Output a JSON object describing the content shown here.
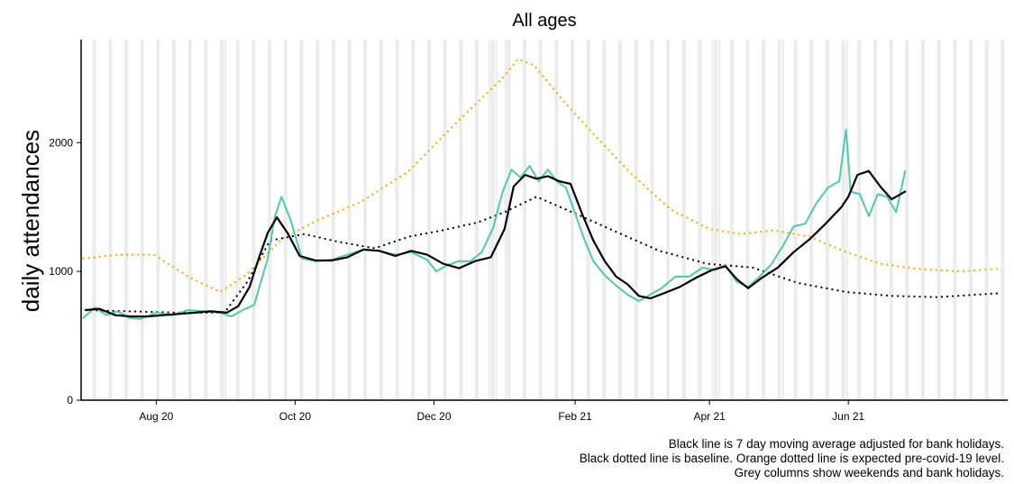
{
  "chart_data": {
    "type": "line",
    "title": "All ages",
    "xlabel": "",
    "ylabel": "daily attendances",
    "ylim": [
      0,
      2800
    ],
    "xlim": [
      "2020-06-29",
      "2021-08-10"
    ],
    "y_ticks": [
      0,
      1000,
      2000
    ],
    "x_ticks": [
      {
        "date": "2020-08-01",
        "label": "Aug 20"
      },
      {
        "date": "2020-10-01",
        "label": "Oct 20"
      },
      {
        "date": "2020-12-01",
        "label": "Dec 20"
      },
      {
        "date": "2021-02-01",
        "label": "Feb 21"
      },
      {
        "date": "2021-04-01",
        "label": "Apr 21"
      },
      {
        "date": "2021-06-01",
        "label": "Jun 21"
      }
    ],
    "grid": false,
    "weekend_start": "2020-06-27",
    "bank_holidays": [
      "2020-08-31",
      "2020-12-25",
      "2020-12-28",
      "2021-01-01",
      "2021-04-02",
      "2021-04-05",
      "2021-05-03",
      "2021-05-31"
    ],
    "colors": {
      "daily": "#4ec9b0",
      "moving_average": "#000000",
      "baseline": "#000000",
      "expected": "#ffa500",
      "weekend_columns": "#ebebeb"
    },
    "series": [
      {
        "key": "daily",
        "style": "solid",
        "x": [
          "2020-06-30",
          "2020-07-05",
          "2020-07-10",
          "2020-07-15",
          "2020-07-20",
          "2020-07-25",
          "2020-08-01",
          "2020-08-08",
          "2020-08-15",
          "2020-08-22",
          "2020-08-29",
          "2020-09-03",
          "2020-09-08",
          "2020-09-13",
          "2020-09-16",
          "2020-09-19",
          "2020-09-22",
          "2020-09-25",
          "2020-09-29",
          "2020-10-04",
          "2020-10-10",
          "2020-10-17",
          "2020-10-24",
          "2020-10-31",
          "2020-11-07",
          "2020-11-14",
          "2020-11-21",
          "2020-11-28",
          "2020-12-02",
          "2020-12-07",
          "2020-12-12",
          "2020-12-17",
          "2020-12-22",
          "2020-12-27",
          "2020-12-31",
          "2021-01-04",
          "2021-01-08",
          "2021-01-12",
          "2021-01-16",
          "2021-01-20",
          "2021-01-24",
          "2021-01-28",
          "2021-02-01",
          "2021-02-05",
          "2021-02-09",
          "2021-02-14",
          "2021-02-19",
          "2021-02-24",
          "2021-03-01",
          "2021-03-06",
          "2021-03-11",
          "2021-03-17",
          "2021-03-23",
          "2021-03-29",
          "2021-04-03",
          "2021-04-08",
          "2021-04-13",
          "2021-04-18",
          "2021-04-23",
          "2021-04-28",
          "2021-05-03",
          "2021-05-08",
          "2021-05-13",
          "2021-05-18",
          "2021-05-23",
          "2021-05-28",
          "2021-05-31",
          "2021-06-02",
          "2021-06-06",
          "2021-06-10",
          "2021-06-14",
          "2021-06-18",
          "2021-06-22",
          "2021-06-26"
        ],
        "values": [
          640,
          720,
          660,
          690,
          640,
          630,
          680,
          660,
          700,
          690,
          680,
          650,
          700,
          740,
          920,
          1100,
          1420,
          1580,
          1400,
          1100,
          1080,
          1090,
          1130,
          1170,
          1160,
          1130,
          1150,
          1090,
          1000,
          1050,
          1080,
          1080,
          1150,
          1340,
          1610,
          1790,
          1730,
          1820,
          1700,
          1790,
          1700,
          1650,
          1450,
          1250,
          1080,
          970,
          890,
          820,
          770,
          820,
          870,
          960,
          960,
          1030,
          1010,
          1050,
          920,
          880,
          960,
          1050,
          1190,
          1350,
          1370,
          1530,
          1650,
          1700,
          2100,
          1620,
          1600,
          1430,
          1600,
          1580,
          1460,
          1780
        ]
      },
      {
        "key": "moving_average",
        "style": "solid",
        "x": [
          "2020-07-01",
          "2020-07-07",
          "2020-07-14",
          "2020-07-21",
          "2020-07-28",
          "2020-08-04",
          "2020-08-11",
          "2020-08-18",
          "2020-08-25",
          "2020-09-01",
          "2020-09-06",
          "2020-09-11",
          "2020-09-15",
          "2020-09-19",
          "2020-09-23",
          "2020-09-28",
          "2020-10-03",
          "2020-10-10",
          "2020-10-17",
          "2020-10-24",
          "2020-10-31",
          "2020-11-07",
          "2020-11-14",
          "2020-11-21",
          "2020-11-28",
          "2020-12-05",
          "2020-12-12",
          "2020-12-19",
          "2020-12-26",
          "2021-01-01",
          "2021-01-05",
          "2021-01-10",
          "2021-01-15",
          "2021-01-20",
          "2021-01-25",
          "2021-01-30",
          "2021-02-04",
          "2021-02-09",
          "2021-02-14",
          "2021-02-19",
          "2021-02-24",
          "2021-03-01",
          "2021-03-06",
          "2021-03-12",
          "2021-03-19",
          "2021-03-26",
          "2021-04-02",
          "2021-04-08",
          "2021-04-13",
          "2021-04-18",
          "2021-04-24",
          "2021-05-01",
          "2021-05-08",
          "2021-05-15",
          "2021-05-22",
          "2021-05-29",
          "2021-06-01",
          "2021-06-05",
          "2021-06-10",
          "2021-06-15",
          "2021-06-20",
          "2021-06-26"
        ],
        "values": [
          700,
          710,
          660,
          650,
          650,
          660,
          670,
          680,
          690,
          680,
          730,
          880,
          1100,
          1300,
          1420,
          1290,
          1120,
          1085,
          1085,
          1110,
          1170,
          1160,
          1120,
          1160,
          1130,
          1060,
          1025,
          1080,
          1110,
          1330,
          1660,
          1750,
          1720,
          1740,
          1700,
          1680,
          1450,
          1240,
          1080,
          960,
          900,
          810,
          790,
          830,
          880,
          950,
          1010,
          1040,
          940,
          870,
          950,
          1030,
          1150,
          1250,
          1370,
          1500,
          1580,
          1750,
          1780,
          1660,
          1560,
          1620
        ]
      },
      {
        "key": "baseline",
        "style": "dotted",
        "x": [
          "2020-07-01",
          "2020-07-20",
          "2020-08-10",
          "2020-08-31",
          "2020-09-10",
          "2020-09-20",
          "2020-10-05",
          "2020-10-20",
          "2020-11-05",
          "2020-11-20",
          "2020-12-05",
          "2020-12-20",
          "2021-01-01",
          "2021-01-15",
          "2021-02-01",
          "2021-02-20",
          "2021-03-10",
          "2021-03-31",
          "2021-04-20",
          "2021-05-10",
          "2021-05-31",
          "2021-06-20",
          "2021-07-10",
          "2021-08-06"
        ],
        "values": [
          700,
          690,
          680,
          680,
          920,
          1240,
          1290,
          1230,
          1180,
          1270,
          1320,
          1380,
          1460,
          1580,
          1450,
          1300,
          1160,
          1060,
          1030,
          910,
          840,
          810,
          800,
          830
        ]
      },
      {
        "key": "expected",
        "style": "dotted",
        "x": [
          "2020-06-30",
          "2020-07-15",
          "2020-07-31",
          "2020-08-15",
          "2020-08-29",
          "2020-09-10",
          "2020-09-25",
          "2020-10-10",
          "2020-10-30",
          "2020-11-20",
          "2020-12-10",
          "2020-12-31",
          "2021-01-07",
          "2021-01-14",
          "2021-01-28",
          "2021-02-10",
          "2021-02-25",
          "2021-03-15",
          "2021-04-01",
          "2021-04-15",
          "2021-04-29",
          "2021-05-15",
          "2021-05-31",
          "2021-06-15",
          "2021-07-01",
          "2021-07-20",
          "2021-08-06"
        ],
        "values": [
          1100,
          1130,
          1130,
          960,
          840,
          980,
          1250,
          1390,
          1540,
          1780,
          2140,
          2500,
          2650,
          2600,
          2300,
          2050,
          1770,
          1480,
          1330,
          1290,
          1320,
          1270,
          1150,
          1060,
          1020,
          1000,
          1020
        ]
      }
    ],
    "annotations": [
      "Black line is 7 day moving average adjusted for bank holidays.",
      "Black dotted line is baseline. Orange dotted line is expected pre-covid-19 level.",
      "Grey columns show weekends and bank holidays."
    ]
  }
}
